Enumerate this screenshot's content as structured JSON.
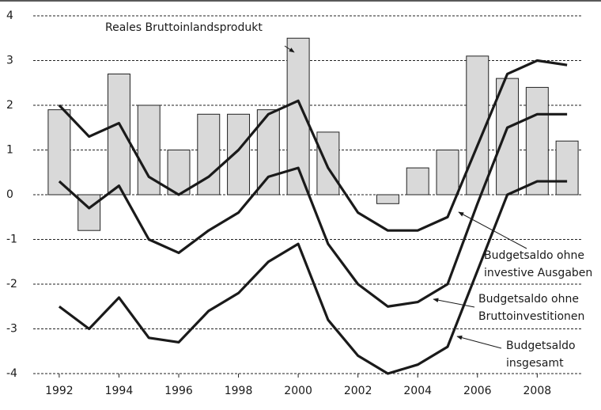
{
  "chart_data": {
    "type": "bar-line",
    "x": [
      1992,
      1993,
      1994,
      1995,
      1996,
      1997,
      1998,
      1999,
      2000,
      2001,
      2002,
      2003,
      2004,
      2005,
      2006,
      2007,
      2008,
      2009
    ],
    "xlim": [
      1991.5,
      2009.5
    ],
    "xticks": [
      1992,
      1994,
      1996,
      1998,
      2000,
      2002,
      2004,
      2006,
      2008
    ],
    "ylim": [
      -4,
      4
    ],
    "yticks": [
      -4,
      -3,
      -2,
      -1,
      0,
      1,
      2,
      3,
      4
    ],
    "grid": true,
    "series": [
      {
        "name": [
          "Reales Bruttoinlandsprodukt"
        ],
        "type": "bar",
        "color": "#d9d9d9",
        "values": [
          1.9,
          -0.8,
          2.7,
          2.0,
          1.0,
          1.8,
          1.8,
          1.9,
          3.5,
          1.4,
          null,
          -0.2,
          0.6,
          1.0,
          3.1,
          2.6,
          2.4,
          1.2
        ]
      },
      {
        "name": [
          "Budgetsaldo ohne",
          "investive Ausgaben"
        ],
        "type": "line",
        "color": "#1a1a1a",
        "values": [
          2.0,
          1.3,
          1.6,
          0.4,
          0.0,
          0.4,
          1.0,
          1.8,
          2.1,
          0.6,
          -0.4,
          -0.8,
          -0.8,
          -0.5,
          1.1,
          2.7,
          3.0,
          2.9
        ]
      },
      {
        "name": [
          "Budgetsaldo ohne",
          "Bruttoinvestitionen"
        ],
        "type": "line",
        "color": "#1a1a1a",
        "values": [
          0.3,
          -0.3,
          0.2,
          -1.0,
          -1.3,
          -0.8,
          -0.4,
          0.4,
          0.6,
          -1.1,
          -2.0,
          -2.5,
          -2.4,
          -2.0,
          -0.2,
          1.5,
          1.8,
          1.8
        ]
      },
      {
        "name": [
          "Budgetsaldo",
          "insgesamt"
        ],
        "type": "line",
        "color": "#1a1a1a",
        "values": [
          -2.5,
          -3.0,
          -2.3,
          -3.2,
          -3.3,
          -2.6,
          -2.2,
          -1.5,
          -1.1,
          -2.8,
          -3.6,
          -4.0,
          -3.8,
          -3.4,
          -1.7,
          0.0,
          0.3,
          0.3
        ]
      }
    ]
  }
}
